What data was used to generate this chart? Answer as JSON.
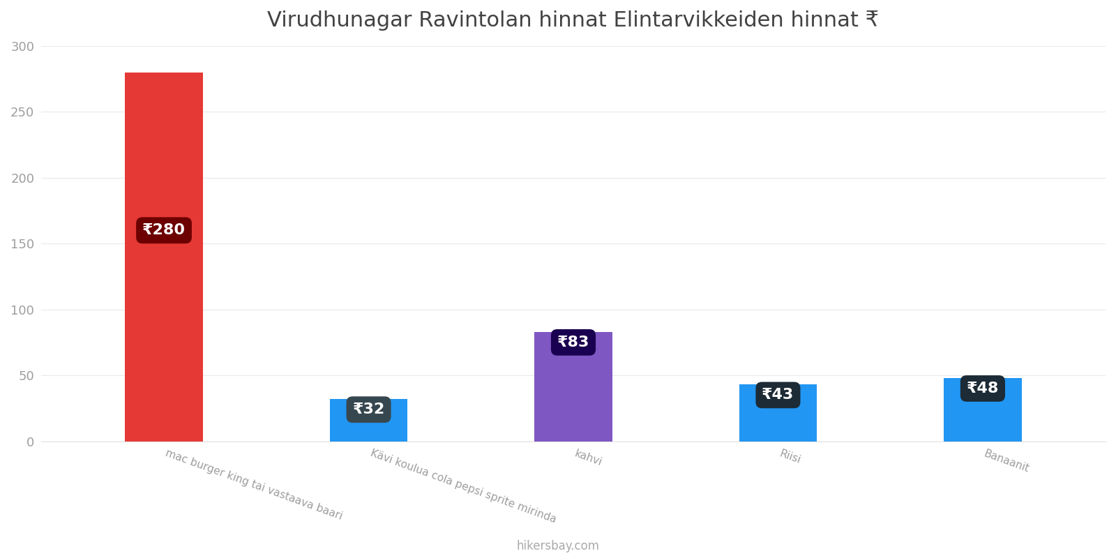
{
  "title": "Virudhunagar Ravintolan hinnat Elintarvikkeiden hinnat ₹",
  "categories": [
    "mac burger king tai vastaava baari",
    "Kävi koulua cola pepsi sprite mirinda",
    "kahvi",
    "Riisi",
    "Banaanit"
  ],
  "values": [
    280,
    32,
    83,
    43,
    48
  ],
  "bar_colors": [
    "#E53935",
    "#2196F3",
    "#7E57C2",
    "#2196F3",
    "#2196F3"
  ],
  "label_bg_colors": [
    "#6D0000",
    "#37474F",
    "#1A0050",
    "#1C2B36",
    "#1C2B36"
  ],
  "ylim": [
    0,
    300
  ],
  "yticks": [
    0,
    50,
    100,
    150,
    200,
    250,
    300
  ],
  "label_fontsize": 16,
  "title_fontsize": 22,
  "footer_text": "hikersbay.com",
  "footer_color": "#AAAAAA",
  "background_color": "#FFFFFF",
  "currency_symbol": "₹",
  "bar_width": 0.38
}
